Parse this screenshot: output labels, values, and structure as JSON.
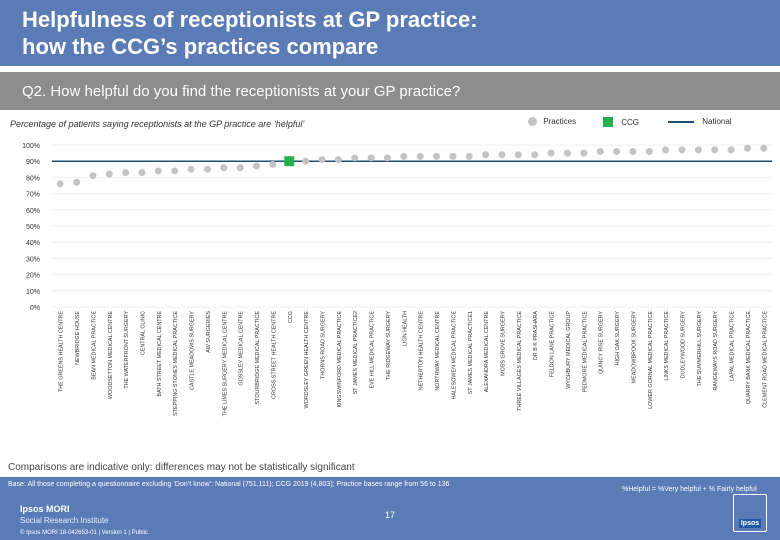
{
  "header": {
    "title_line1": "Helpfulness of receptionists at GP practice:",
    "title_line2": "how the CCG’s practices compare"
  },
  "question": "Q2. How helpful do you find the receptionists at your GP practice?",
  "subtitle": "Percentage of patients saying receptionists at the GP practice are ‘helpful’",
  "legend": {
    "practices": "Practices",
    "ccg": "CCG",
    "national": "National"
  },
  "colors": {
    "practice_dot": "#c4c4c4",
    "ccg_marker": "#22b14c",
    "national_line": "#1f4e79",
    "header": "#5a7bb5",
    "question_bar": "#8d8d8d"
  },
  "chart_data": {
    "type": "scatter",
    "title": "Percentage of patients saying receptionists at the GP practice are ‘helpful’",
    "ylim": [
      0,
      100
    ],
    "yticks": [
      "0%",
      "10%",
      "20%",
      "30%",
      "40%",
      "50%",
      "60%",
      "70%",
      "80%",
      "90%",
      "100%"
    ],
    "national": 90,
    "categories": [
      "THE GREENS HEALTH CENTRE",
      "NEWBRIDGE HOUSE",
      "BEAN MEDICAL PRACTICE",
      "WOODSETTON MEDICAL CENTRE",
      "THE WATERFRONT SURGERY",
      "CENTRAL CLINIC",
      "BATH STREET MEDICAL CENTRE",
      "STEPPING STONES MEDICAL PRACTICE",
      "CASTLE MEADOWS SURGERY",
      "AW SURGERIES",
      "THE LIMES SURGERY MEDICAL CENTRE",
      "GOSSLEY MEDICAL CENTRE",
      "STOURBRIDGE MEDICAL PRACTICE",
      "CROSS STREET HEALTH CENTRE",
      "CCG",
      "WORDSLEY GREEN HEALTH CENTRE",
      "THORNS ROAD SURGERY",
      "KINGSWINFORD MEDICAL PRACTICE",
      "ST JAMES MEDICAL PRACTICE2",
      "EVE HILL MEDICAL PRACTICE",
      "THE RIDGEWAY SURGERY",
      "LION HEALTH",
      "NETHERTON HEALTH CENTRE",
      "NORTHWAY MEDICAL CENTRE",
      "HALESOWEN MEDICAL PRACTICE",
      "ST JAMES MEDICAL PRACTICE1",
      "ALEXANDRA MEDICAL CENTRE",
      "MOSS GROVE SURGERY",
      "THREE VILLAGES MEDICAL PRACTICE",
      "DR B K PRASHARA",
      "FELDON LANE PRACTICE",
      "WYCHBURY MEDICAL GROUP",
      "PEDMORE MEDICAL PRACTICE",
      "QUINCY RISE SURGERY",
      "HIGH OAK SURGERY",
      "MEADOWBROOK SURGERY",
      "LOWER GORNAL MEDICAL PRACTICE",
      "LINKS MEDICAL PRACTICE",
      "DUDLEYWOOD SURGERY",
      "THE SUMMERHILL SURGERY",
      "RANGEWAYS ROAD SURGERY",
      "LAPAL MEDICAL PRACTICE",
      "QUARRY BANK MEDICAL PRACTICE",
      "CLEMENT ROAD MEDICAL PRACTICE"
    ],
    "values": [
      76,
      77,
      81,
      82,
      83,
      83,
      84,
      84,
      85,
      85,
      86,
      86,
      87,
      88,
      90,
      90,
      91,
      91,
      92,
      92,
      92,
      93,
      93,
      93,
      93,
      93,
      94,
      94,
      94,
      94,
      95,
      95,
      95,
      96,
      96,
      96,
      96,
      97,
      97,
      97,
      97,
      97,
      98,
      98
    ],
    "ccg_index": 14
  },
  "note": "Comparisons are indicative only: differences may not be statistically significant",
  "footer": {
    "base": "Base: All those completing a questionnaire excluding ‘Don’t know’: National (751,111); CCG 2019 (4,803); Practice bases range from 56 to 136",
    "definition": "%Helpful = %Very helpful + % Fairly helpful",
    "brand_line1": "Ipsos MORI",
    "brand_line2": "Social Research Institute",
    "copyright": "© Ipsos MORI     18-042653-01 | Version 1 | Public",
    "page_number": "17",
    "logo_text": "Ipsos"
  }
}
